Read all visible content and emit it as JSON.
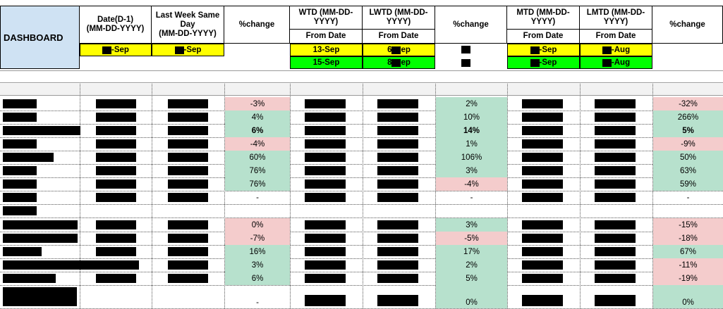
{
  "title": "DASHBOARD",
  "headers": {
    "date": "Date(D-1)\n(MM-DD-YYYY)",
    "last_week": "Last Week Same Day\n(MM-DD-YYYY)",
    "pct1": "%change",
    "wtd": "WTD (MM-DD-YYYY)",
    "lwtd": "LWTD (MM-DD-YYYY)",
    "pct2": "%change",
    "mtd": "MTD (MM-DD-YYYY)",
    "lmtd": "LMTD (MM-DD-YYYY)",
    "pct3": "%change",
    "from_date": "From Date"
  },
  "date_rows": {
    "row1": {
      "date": "-Sep",
      "last_week": "-Sep",
      "wtd": "13-Sep",
      "lwtd_a": "6",
      "lwtd_b": "ep",
      "mtd": "-Sep",
      "lmtd": "-Aug"
    },
    "row2": {
      "wtd": "15-Sep",
      "lwtd_a": "8",
      "lwtd_b": "ep",
      "mtd": "-Sep",
      "lmtd": "-Aug"
    }
  },
  "rows": [
    {
      "c1": "-3%",
      "c1s": "neg",
      "c2": "2%",
      "c2s": "pos",
      "c3": "-32%",
      "c3s": "neg",
      "bold": false
    },
    {
      "c1": "4%",
      "c1s": "pos",
      "c2": "10%",
      "c2s": "pos",
      "c3": "266%",
      "c3s": "pos",
      "bold": false
    },
    {
      "c1": "6%",
      "c1s": "pos",
      "c2": "14%",
      "c2s": "pos",
      "c3": "5%",
      "c3s": "pos",
      "bold": true
    },
    {
      "c1": "-4%",
      "c1s": "neg",
      "c2": "1%",
      "c2s": "pos",
      "c3": "-9%",
      "c3s": "neg",
      "bold": false
    },
    {
      "c1": "60%",
      "c1s": "pos",
      "c2": "106%",
      "c2s": "pos",
      "c3": "50%",
      "c3s": "pos",
      "bold": false
    },
    {
      "c1": "76%",
      "c1s": "pos",
      "c2": "3%",
      "c2s": "pos",
      "c3": "63%",
      "c3s": "pos",
      "bold": false
    },
    {
      "c1": "76%",
      "c1s": "pos",
      "c2": "-4%",
      "c2s": "neg",
      "c3": "59%",
      "c3s": "pos",
      "bold": false
    },
    {
      "c1": "-",
      "c1s": "",
      "c2": "-",
      "c2s": "",
      "c3": "-",
      "c3s": "",
      "bold": false
    },
    {
      "c1": "",
      "c1s": "",
      "c2": "",
      "c2s": "",
      "c3": "",
      "c3s": "",
      "bold": false
    },
    {
      "c1": "0%",
      "c1s": "neg",
      "c2": "3%",
      "c2s": "pos",
      "c3": "-15%",
      "c3s": "neg",
      "bold": false
    },
    {
      "c1": "-7%",
      "c1s": "neg",
      "c2": "-5%",
      "c2s": "neg",
      "c3": "-18%",
      "c3s": "neg",
      "bold": false
    },
    {
      "c1": "16%",
      "c1s": "pos",
      "c2": "17%",
      "c2s": "pos",
      "c3": "67%",
      "c3s": "pos",
      "bold": false
    },
    {
      "c1": "3%",
      "c1s": "pos",
      "c2": "2%",
      "c2s": "pos",
      "c3": "-11%",
      "c3s": "neg",
      "bold": false
    },
    {
      "c1": "6%",
      "c1s": "pos",
      "c2": "5%",
      "c2s": "pos",
      "c3": "-19%",
      "c3s": "neg",
      "bold": false
    },
    {
      "c1": "-",
      "c1s": "",
      "c2": "0%",
      "c2s": "pos",
      "c3": "0%",
      "c3s": "pos",
      "bold": false
    }
  ],
  "colors": {
    "header_blue": "#cfe2f3",
    "yellow": "#ffff00",
    "green": "#00ff00",
    "positive": "#b7e1cd",
    "negative": "#f4cccc",
    "redaction": "#000000"
  }
}
